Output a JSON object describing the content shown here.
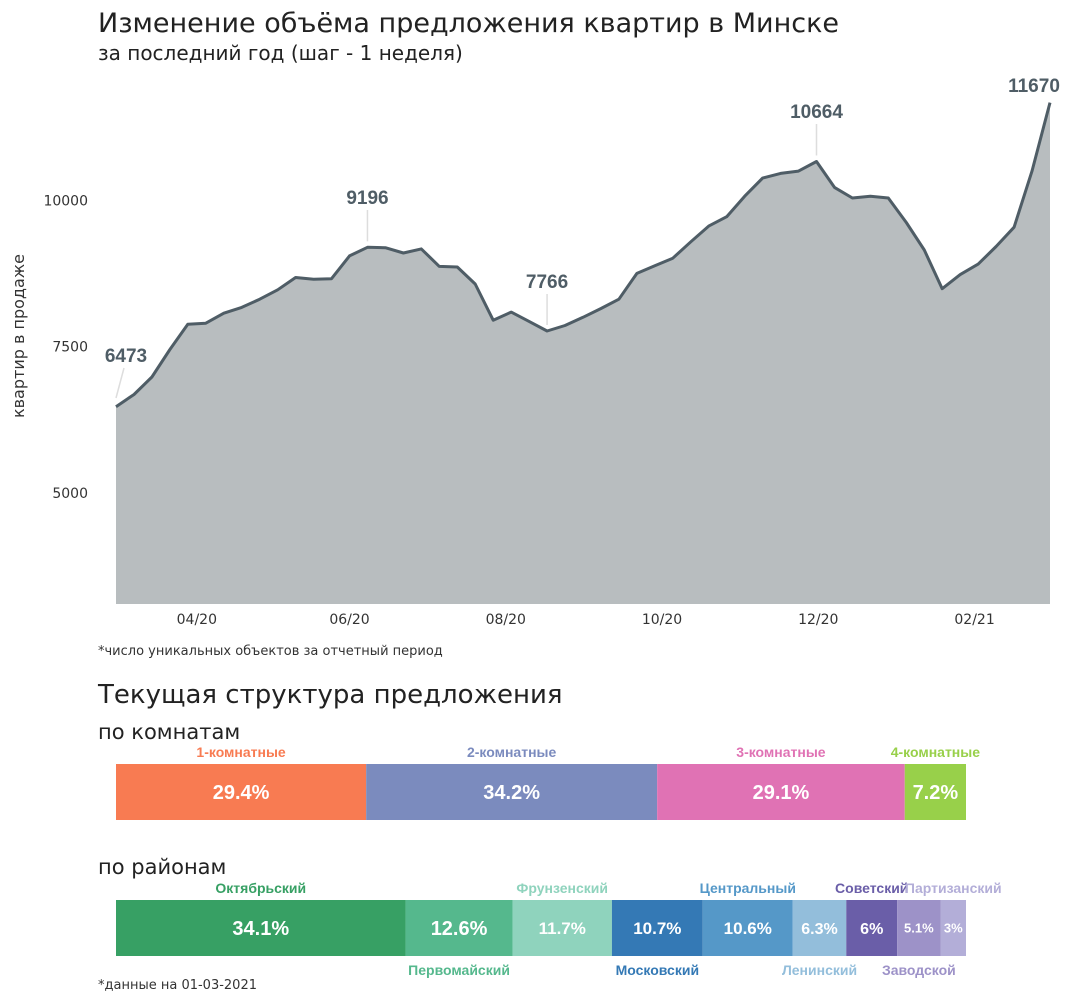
{
  "header": {
    "title": "Изменение объёма предложения квартир в Минске",
    "subtitle": "за последний год (шаг - 1 неделя)"
  },
  "chart_data": [
    {
      "type": "area",
      "title": "Изменение объёма предложения квартир в Минске",
      "subtitle": "за последний год (шаг - 1 неделя)",
      "xlabel": "",
      "ylabel": "квартир в продаже",
      "ylim": [
        3100,
        11800
      ],
      "y_ticks": [
        5000,
        7500,
        10000
      ],
      "x_ticks": [
        {
          "label": "04/20",
          "week": 4.5
        },
        {
          "label": "06/20",
          "week": 13
        },
        {
          "label": "08/20",
          "week": 21.7
        },
        {
          "label": "10/20",
          "week": 30.4
        },
        {
          "label": "12/20",
          "week": 39.1
        },
        {
          "label": "02/21",
          "week": 47.8
        }
      ],
      "values": [
        6473,
        6680,
        6980,
        7450,
        7880,
        7900,
        8070,
        8170,
        8310,
        8470,
        8680,
        8650,
        8660,
        9050,
        9196,
        9190,
        9100,
        9170,
        8870,
        8860,
        8570,
        7950,
        8090,
        7930,
        7766,
        7860,
        8000,
        8150,
        8310,
        8750,
        8880,
        9010,
        9290,
        9560,
        9720,
        10070,
        10380,
        10460,
        10500,
        10664,
        10220,
        10040,
        10070,
        10040,
        9620,
        9150,
        8490,
        8730,
        8910,
        9210,
        9540,
        10500,
        11670
      ],
      "annotations": [
        {
          "label": "6473",
          "value": 6473
        },
        {
          "label": "9196",
          "value": 9196
        },
        {
          "label": "7766",
          "value": 7766
        },
        {
          "label": "10664",
          "value": 10664
        },
        {
          "label": "11670",
          "value": 11670
        }
      ],
      "footnote": "*число уникальных объектов за отчетный период",
      "colors": {
        "fill": "#b8bdbf",
        "line": "#4f5d66"
      }
    },
    {
      "type": "bar",
      "orientation": "horizontal-stacked",
      "title": "по комнатам",
      "categories": [
        "1-комнатные",
        "2-комнатные",
        "3-комнатные",
        "4-комнатные"
      ],
      "values": [
        29.4,
        34.2,
        29.1,
        7.2
      ],
      "value_labels": [
        "29.4%",
        "34.2%",
        "29.1%",
        "7.2%"
      ],
      "colors": [
        "#f87b52",
        "#7b8bbe",
        "#e072b4",
        "#98d04a"
      ]
    },
    {
      "type": "bar",
      "orientation": "horizontal-stacked",
      "title": "по районам",
      "categories": [
        "Октябрьский",
        "Первомайский",
        "Фрунзенский",
        "Московский",
        "Центральный",
        "Ленинский",
        "Советский",
        "Заводской",
        "Партизанский"
      ],
      "values": [
        34.1,
        12.6,
        11.7,
        10.7,
        10.6,
        6.3,
        6,
        5.1,
        3
      ],
      "value_labels": [
        "34.1%",
        "12.6%",
        "11.7%",
        "10.7%",
        "10.6%",
        "6.3%",
        "6%",
        "5.1%",
        "3%"
      ],
      "label_positions": [
        "above",
        "below",
        "above",
        "below",
        "above",
        "below",
        "above",
        "below",
        "above"
      ],
      "colors": [
        "#37a064",
        "#55b88d",
        "#8fd3bd",
        "#3479b5",
        "#5598c8",
        "#93bedb",
        "#6a5ea8",
        "#9d92c8",
        "#b3aed8"
      ]
    }
  ],
  "structure": {
    "title": "Текущая структура предложения",
    "footnote": "*данные на 01-03-2021"
  }
}
